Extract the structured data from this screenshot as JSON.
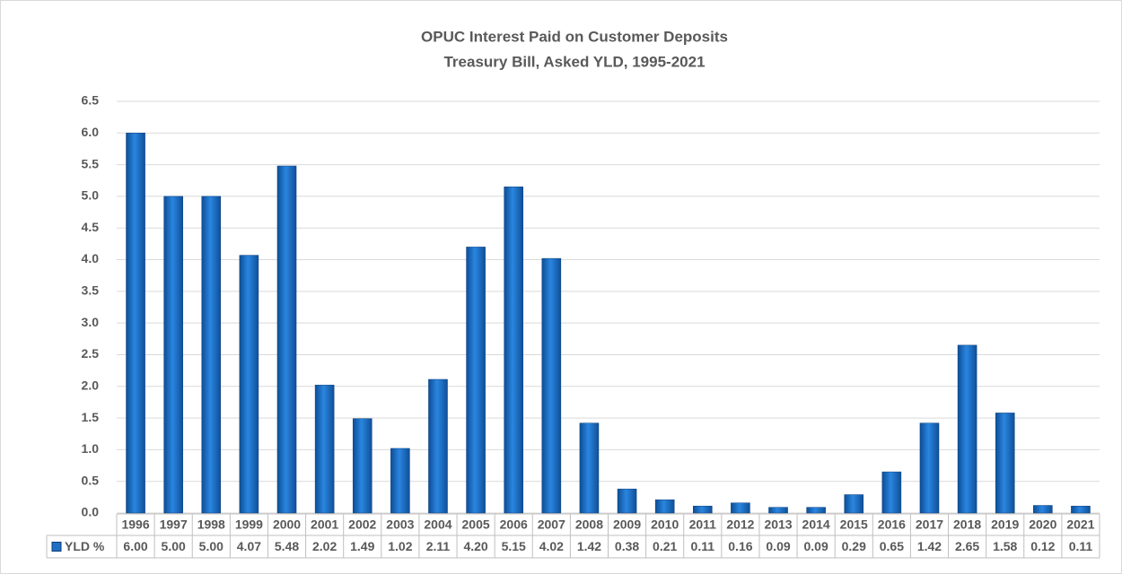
{
  "chart_data": {
    "type": "bar",
    "title": "OPUC Interest Paid on Customer Deposits",
    "subtitle": "Treasury Bill, Asked YLD, 1995-2021",
    "categories": [
      "1996",
      "1997",
      "1998",
      "1999",
      "2000",
      "2001",
      "2002",
      "2003",
      "2004",
      "2005",
      "2006",
      "2007",
      "2008",
      "2009",
      "2010",
      "2011",
      "2012",
      "2013",
      "2014",
      "2015",
      "2016",
      "2017",
      "2018",
      "2019",
      "2020",
      "2021"
    ],
    "series": [
      {
        "name": "YLD %",
        "color": "#1f6fc5",
        "values": [
          6.0,
          5.0,
          5.0,
          4.07,
          5.48,
          2.02,
          1.49,
          1.02,
          2.11,
          4.2,
          5.15,
          4.02,
          1.42,
          0.38,
          0.21,
          0.11,
          0.16,
          0.09,
          0.09,
          0.29,
          0.65,
          1.42,
          2.65,
          1.58,
          0.12,
          0.11
        ],
        "value_labels": [
          "6.00",
          "5.00",
          "5.00",
          "4.07",
          "5.48",
          "2.02",
          "1.49",
          "1.02",
          "2.11",
          "4.20",
          "5.15",
          "4.02",
          "1.42",
          "0.38",
          "0.21",
          "0.11",
          "0.16",
          "0.09",
          "0.09",
          "0.29",
          "0.65",
          "1.42",
          "2.65",
          "1.58",
          "0.12",
          "0.11"
        ]
      }
    ],
    "ylim": [
      0,
      6.5
    ],
    "yticks": [
      {
        "value": 0,
        "label": "0.0"
      },
      0.5,
      {
        "value": 1,
        "label": "1.0"
      },
      1.5,
      {
        "value": 2,
        "label": "2.0"
      },
      2.5,
      {
        "value": 3,
        "label": "3.0"
      },
      3.5,
      {
        "value": 4,
        "label": "4.0"
      },
      4.5,
      {
        "value": 5,
        "label": "5.0"
      },
      5.5,
      {
        "value": 6,
        "label": "6.0"
      },
      6.5
    ],
    "grid": true,
    "data_table": true
  }
}
